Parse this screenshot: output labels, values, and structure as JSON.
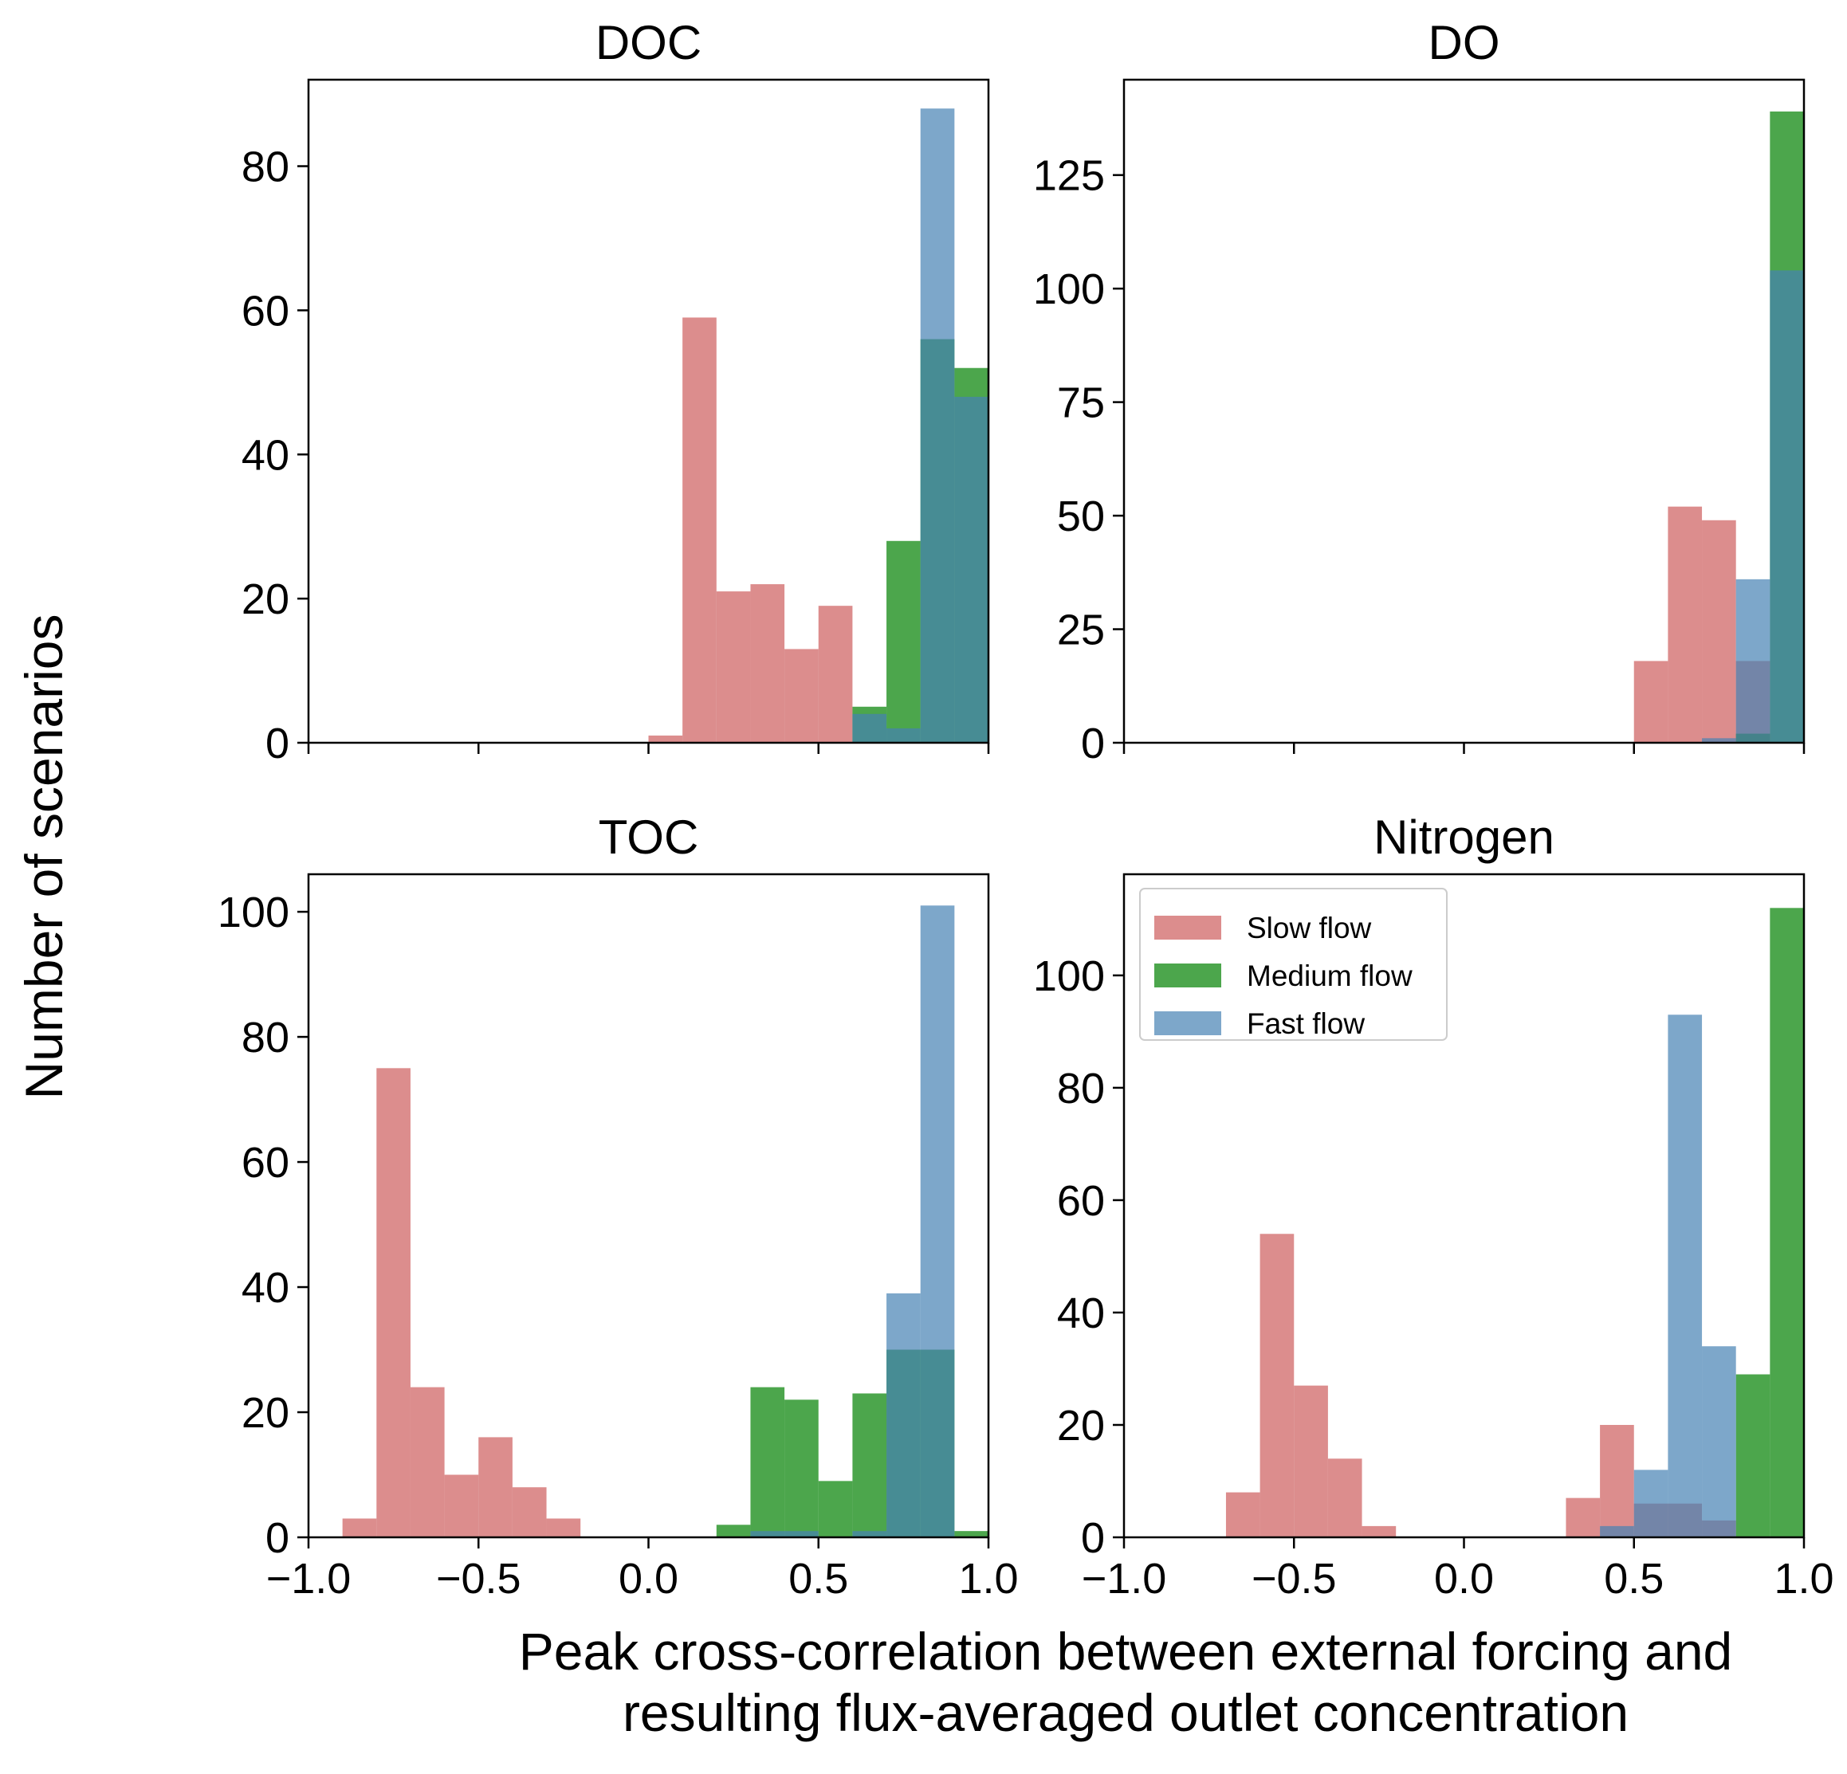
{
  "figure": {
    "ylabel": "Number of scenarios",
    "xlabel_line1": "Peak cross-correlation between external forcing and",
    "xlabel_line2": "resulting flux-averaged outlet concentration"
  },
  "colors": {
    "Slow flow": "#cd5c5c",
    "Medium flow": "#008000",
    "Fast flow": "#4682b4",
    "alpha": 0.7
  },
  "legend": {
    "placement": "upper-left of Nitrogen panel",
    "entries": [
      "Slow flow",
      "Medium flow",
      "Fast flow"
    ]
  },
  "chart_data": [
    {
      "type": "histogram",
      "title": "DOC",
      "bin_width": 0.1,
      "xlim": [
        -1.0,
        1.0
      ],
      "ylim": [
        0,
        92
      ],
      "yticks": [
        "0",
        "20",
        "40",
        "60",
        "80"
      ],
      "xticks": [
        "",
        "",
        "",
        "",
        ""
      ],
      "series": [
        {
          "name": "Slow flow",
          "bin_starts": [
            0.0,
            0.1,
            0.2,
            0.3,
            0.4,
            0.5
          ],
          "values": [
            1,
            59,
            21,
            22,
            13,
            19
          ]
        },
        {
          "name": "Medium flow",
          "bin_starts": [
            0.6,
            0.7,
            0.8,
            0.9
          ],
          "values": [
            5,
            28,
            56,
            52
          ]
        },
        {
          "name": "Fast flow",
          "bin_starts": [
            0.6,
            0.7,
            0.8,
            0.9
          ],
          "values": [
            4,
            2,
            88,
            48
          ]
        }
      ]
    },
    {
      "type": "histogram",
      "title": "DO",
      "bin_width": 0.1,
      "xlim": [
        -1.0,
        1.0
      ],
      "ylim": [
        0,
        146
      ],
      "yticks": [
        "0",
        "25",
        "50",
        "75",
        "100",
        "125"
      ],
      "xticks": [
        "",
        "",
        "",
        "",
        ""
      ],
      "series": [
        {
          "name": "Slow flow",
          "bin_starts": [
            0.5,
            0.6,
            0.7,
            0.8
          ],
          "values": [
            18,
            52,
            49,
            18
          ]
        },
        {
          "name": "Medium flow",
          "bin_starts": [
            0.8,
            0.9
          ],
          "values": [
            2,
            139
          ]
        },
        {
          "name": "Fast flow",
          "bin_starts": [
            0.7,
            0.8,
            0.9
          ],
          "values": [
            1,
            36,
            104
          ]
        }
      ]
    },
    {
      "type": "histogram",
      "title": "TOC",
      "bin_width": 0.1,
      "xlim": [
        -1.0,
        1.0
      ],
      "ylim": [
        0,
        106
      ],
      "yticks": [
        "0",
        "20",
        "40",
        "60",
        "80",
        "100"
      ],
      "xticks": [
        "−1.0",
        "−0.5",
        "0.0",
        "0.5",
        "1.0"
      ],
      "series": [
        {
          "name": "Slow flow",
          "bin_starts": [
            -0.9,
            -0.8,
            -0.7,
            -0.6,
            -0.5,
            -0.4,
            -0.3
          ],
          "values": [
            3,
            75,
            24,
            10,
            16,
            8,
            3
          ]
        },
        {
          "name": "Medium flow",
          "bin_starts": [
            0.2,
            0.3,
            0.4,
            0.5,
            0.6,
            0.7,
            0.8,
            0.9
          ],
          "values": [
            2,
            24,
            22,
            9,
            23,
            30,
            30,
            1
          ]
        },
        {
          "name": "Fast flow",
          "bin_starts": [
            0.3,
            0.4,
            0.5,
            0.6,
            0.7,
            0.8
          ],
          "values": [
            1,
            1,
            0,
            1,
            39,
            101
          ]
        }
      ]
    },
    {
      "type": "histogram",
      "title": "Nitrogen",
      "bin_width": 0.1,
      "xlim": [
        -1.0,
        1.0
      ],
      "ylim": [
        0,
        118
      ],
      "yticks": [
        "0",
        "20",
        "40",
        "60",
        "80",
        "100"
      ],
      "xticks": [
        "−1.0",
        "−0.5",
        "0.0",
        "0.5",
        "1.0"
      ],
      "series": [
        {
          "name": "Slow flow",
          "bin_starts": [
            -0.7,
            -0.6,
            -0.5,
            -0.4,
            -0.3,
            0.3,
            0.4,
            0.5,
            0.6,
            0.7
          ],
          "values": [
            8,
            54,
            27,
            14,
            2,
            7,
            20,
            6,
            6,
            3
          ]
        },
        {
          "name": "Medium flow",
          "bin_starts": [
            0.8,
            0.9
          ],
          "values": [
            29,
            112
          ]
        },
        {
          "name": "Fast flow",
          "bin_starts": [
            0.4,
            0.5,
            0.6,
            0.7
          ],
          "values": [
            2,
            12,
            93,
            34
          ]
        }
      ]
    }
  ]
}
